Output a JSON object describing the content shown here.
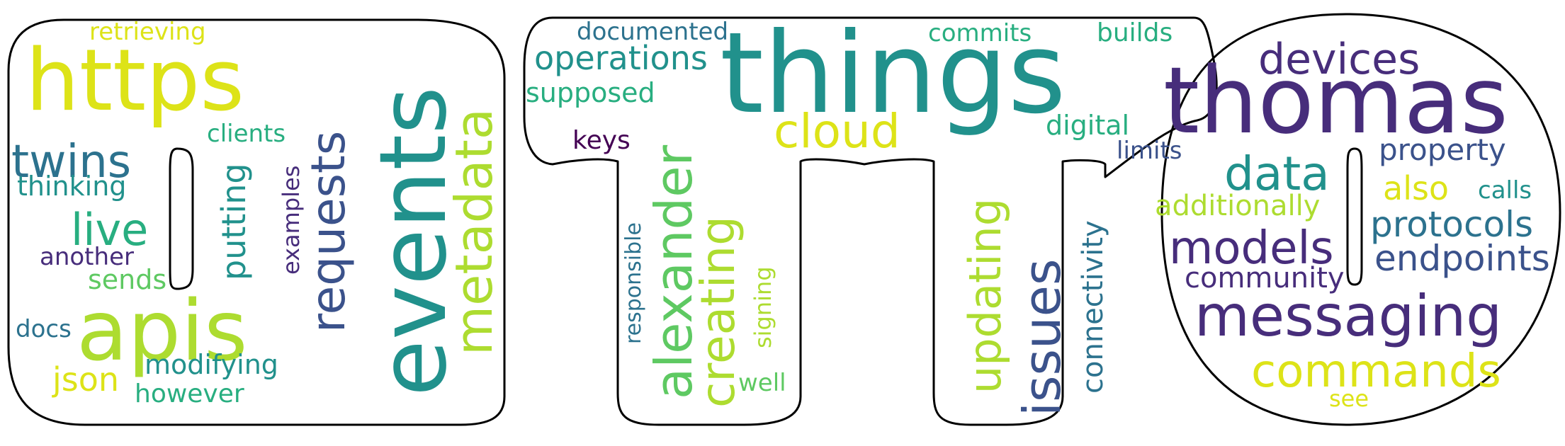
{
  "palette": {
    "dark_purple": "#440154",
    "indigo": "#472d7b",
    "blue": "#3b528b",
    "steel_blue": "#2c728e",
    "teal": "#21918c",
    "sea_green": "#28ae80",
    "green": "#5ec962",
    "lime": "#addc30",
    "yellow": "#dde318",
    "outline": "#000000",
    "background": "#ffffff"
  },
  "words": {
    "things": "things",
    "thomas": "thomas",
    "events": "events",
    "https": "https",
    "apis": "apis",
    "messaging": "messaging",
    "requests": "requests",
    "metadata": "metadata",
    "alexander": "alexander",
    "data": "data",
    "models": "models",
    "twins": "twins",
    "commands": "commands",
    "creating": "creating",
    "updating": "updating",
    "issues": "issues",
    "devices": "devices",
    "cloud": "cloud",
    "live": "live",
    "protocols": "protocols",
    "endpoints": "endpoints",
    "operations": "operations",
    "putting": "putting",
    "property": "property",
    "connectivity": "connectivity",
    "json": "json",
    "digital": "digital",
    "additionally": "additionally",
    "also": "also",
    "community": "community",
    "modifying": "modifying",
    "supposed": "supposed",
    "documented": "documented",
    "retrieving": "retrieving",
    "clients": "clients",
    "thinking": "thinking",
    "sends": "sends",
    "another": "another",
    "docs": "docs",
    "however": "however",
    "commits": "commits",
    "builds": "builds",
    "keys": "keys",
    "limits": "limits",
    "calls": "calls",
    "responsible": "responsible",
    "signing": "signing",
    "well": "well",
    "examples": "examples",
    "see": "see"
  }
}
